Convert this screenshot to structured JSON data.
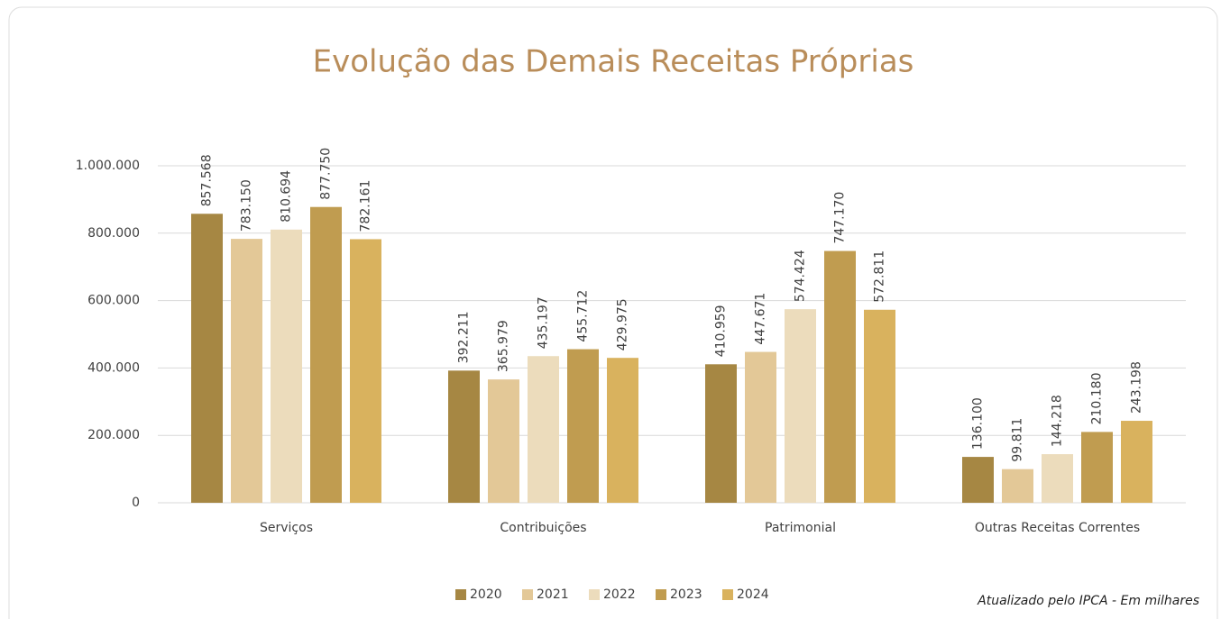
{
  "chart_data": {
    "type": "bar",
    "title": "Evolução das Demais Receitas Próprias",
    "note": "Atualizado pelo IPCA - Em milhares",
    "categories": [
      "Serviços",
      "Contribuições",
      "Patrimonial",
      "Outras Receitas Correntes"
    ],
    "series": [
      {
        "name": "2020",
        "color": "#a68743",
        "values": [
          857568,
          392211,
          410959,
          136100
        ],
        "value_labels": [
          "857.568",
          "392.211",
          "410.959",
          "136.100"
        ]
      },
      {
        "name": "2021",
        "color": "#e3c897",
        "values": [
          783150,
          365979,
          447671,
          99811
        ],
        "value_labels": [
          "783.150",
          "365.979",
          "447.671",
          "99.811"
        ]
      },
      {
        "name": "2022",
        "color": "#ecdcbc",
        "values": [
          810694,
          435197,
          574424,
          144218
        ],
        "value_labels": [
          "810.694",
          "435.197",
          "574.424",
          "144.218"
        ]
      },
      {
        "name": "2023",
        "color": "#c09c50",
        "values": [
          877750,
          455712,
          747170,
          210180
        ],
        "value_labels": [
          "877.750",
          "455.712",
          "747.170",
          "210.180"
        ]
      },
      {
        "name": "2024",
        "color": "#d9b25e",
        "values": [
          782161,
          429975,
          572811,
          243198
        ],
        "value_labels": [
          "782.161",
          "429.975",
          "572.811",
          "243.198"
        ]
      }
    ],
    "ylim": [
      0,
      1000000
    ],
    "yticks": [
      0,
      {
        "value": 200000,
        "label": "200.000"
      },
      {
        "value": 400000,
        "label": "400.000"
      },
      {
        "value": 600000,
        "label": "600.000"
      },
      {
        "value": 800000,
        "label": "800.000"
      },
      {
        "value": 1000000,
        "label": "1.000.000"
      }
    ],
    "grid": true,
    "legend": "bottom"
  }
}
